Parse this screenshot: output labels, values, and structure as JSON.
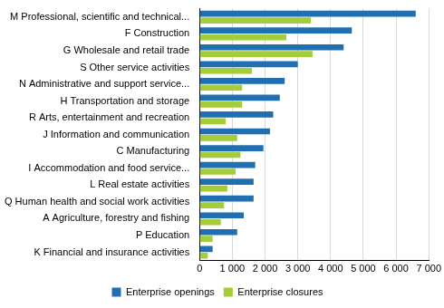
{
  "chart_data": {
    "type": "bar",
    "orientation": "horizontal",
    "categories": [
      "M Professional, scientific and technical...",
      "F Construction",
      "G Wholesale and retail trade",
      "S Other service activities",
      "N Administrative and support service...",
      "H Transportation and storage",
      "R Arts, entertainment and recreation",
      "J Information and communication",
      "C Manufacturing",
      "I Accommodation and food service...",
      "L Real estate activities",
      "Q Human health and social work activities",
      "A Agriculture, forestry and fishing",
      "P Education",
      "K Financial and insurance activities"
    ],
    "series": [
      {
        "name": "Enterprise openings",
        "color": "#1f6fb2",
        "values": [
          6600,
          4650,
          4400,
          3000,
          2600,
          2450,
          2250,
          2150,
          1950,
          1700,
          1650,
          1650,
          1350,
          1150,
          400
        ]
      },
      {
        "name": "Enterprise closures",
        "color": "#a5cd39",
        "values": [
          3400,
          2650,
          3450,
          1600,
          1300,
          1300,
          800,
          1150,
          1250,
          1100,
          850,
          750,
          650,
          400,
          250
        ]
      }
    ],
    "xlim": [
      0,
      7000
    ],
    "xticks": [
      0,
      {
        "value": 1000,
        "label": "1 000"
      },
      {
        "value": 2000,
        "label": "2 000"
      },
      {
        "value": 3000,
        "label": "3 000"
      },
      {
        "value": 4000,
        "label": "4 000"
      },
      {
        "value": 5000,
        "label": "5 000"
      },
      {
        "value": 6000,
        "label": "6 000"
      },
      {
        "value": 7000,
        "label": "7 000"
      }
    ],
    "grid": true,
    "legend": "bottom"
  }
}
